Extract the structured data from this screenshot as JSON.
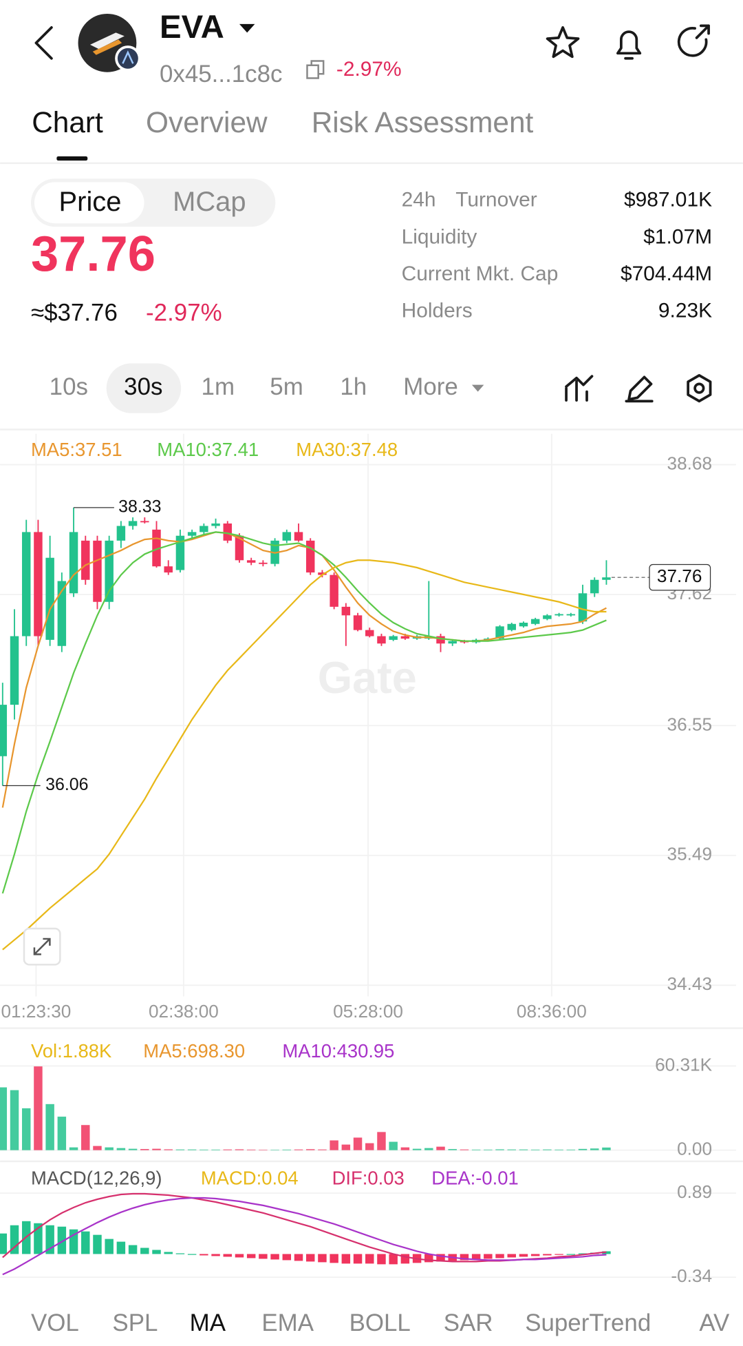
{
  "header": {
    "token": "EVA",
    "address": "0x45...1c8c",
    "change": "-2.97%"
  },
  "tabs": [
    "Chart",
    "Overview",
    "Risk Assessment"
  ],
  "toggle": [
    "Price",
    "MCap"
  ],
  "price": {
    "value": "37.76",
    "usd": "≈$37.76",
    "change": "-2.97%"
  },
  "stats": [
    {
      "prefix": "24h",
      "label": "Turnover",
      "value": "$987.01K"
    },
    {
      "label": "Liquidity",
      "value": "$1.07M"
    },
    {
      "label": "Current Mkt. Cap",
      "value": "$704.44M"
    },
    {
      "label": "Holders",
      "value": "9.23K"
    }
  ],
  "intervals": [
    "10s",
    "30s",
    "1m",
    "5m",
    "1h",
    "More"
  ],
  "indicator_tabs": [
    "VOL",
    "SPL",
    "MA",
    "EMA",
    "BOLL",
    "SAR",
    "SuperTrend",
    "AV"
  ],
  "chart_data": [
    {
      "type": "candlestick",
      "watermark": "Gate",
      "up_color": "#23c28d",
      "down_color": "#f0345d",
      "ylim": [
        34.43,
        38.68
      ],
      "yticks": [
        38.68,
        37.62,
        36.55,
        35.49,
        34.43
      ],
      "x_labels": [
        "01:23:30",
        "02:38:00",
        "05:28:00",
        "08:36:00"
      ],
      "high_label": 38.33,
      "low_label": 36.06,
      "last_price": 37.76,
      "candles": [
        [
          36.3,
          36.9,
          36.06,
          36.72
        ],
        [
          36.72,
          37.5,
          36.6,
          37.28
        ],
        [
          37.28,
          38.23,
          37.2,
          38.13
        ],
        [
          38.13,
          38.23,
          37.2,
          37.28
        ],
        [
          37.25,
          38.1,
          37.2,
          37.92
        ],
        [
          37.2,
          37.8,
          37.15,
          37.73
        ],
        [
          37.63,
          38.33,
          37.6,
          38.13
        ],
        [
          38.06,
          38.1,
          37.7,
          37.74
        ],
        [
          38.06,
          38.1,
          37.5,
          37.56
        ],
        [
          37.56,
          38.1,
          37.5,
          38.06
        ],
        [
          38.06,
          38.22,
          38.0,
          38.18
        ],
        [
          38.18,
          38.25,
          38.15,
          38.22
        ],
        [
          38.22,
          38.25,
          38.2,
          38.21
        ],
        [
          38.15,
          38.22,
          37.84,
          37.85
        ],
        [
          37.85,
          37.9,
          37.78,
          37.8
        ],
        [
          37.82,
          38.15,
          37.8,
          38.1
        ],
        [
          38.1,
          38.15,
          38.08,
          38.13
        ],
        [
          38.13,
          38.2,
          38.1,
          38.18
        ],
        [
          38.18,
          38.24,
          38.16,
          38.2
        ],
        [
          38.2,
          38.22,
          38.04,
          38.06
        ],
        [
          38.1,
          38.12,
          37.88,
          37.9
        ],
        [
          37.9,
          37.92,
          37.86,
          37.88
        ],
        [
          37.88,
          37.9,
          37.85,
          37.87
        ],
        [
          37.87,
          38.08,
          37.85,
          38.06
        ],
        [
          38.06,
          38.15,
          38.04,
          38.13
        ],
        [
          38.13,
          38.2,
          38.05,
          38.06
        ],
        [
          38.06,
          38.08,
          37.78,
          37.8
        ],
        [
          37.8,
          37.82,
          37.76,
          37.78
        ],
        [
          37.78,
          37.8,
          37.5,
          37.52
        ],
        [
          37.52,
          37.55,
          37.2,
          37.45
        ],
        [
          37.45,
          37.47,
          37.32,
          37.33
        ],
        [
          37.33,
          37.35,
          37.27,
          37.28
        ],
        [
          37.28,
          37.3,
          37.2,
          37.22
        ],
        [
          37.25,
          37.29,
          37.24,
          37.28
        ],
        [
          37.28,
          37.3,
          37.25,
          37.26
        ],
        [
          37.26,
          37.29,
          37.25,
          37.28
        ],
        [
          37.26,
          37.73,
          37.25,
          37.28
        ],
        [
          37.28,
          37.3,
          37.15,
          37.22
        ],
        [
          37.22,
          37.25,
          37.2,
          37.24
        ],
        [
          37.24,
          37.25,
          37.22,
          37.23
        ],
        [
          37.23,
          37.26,
          37.22,
          37.25
        ],
        [
          37.25,
          37.27,
          37.24,
          37.26
        ],
        [
          37.26,
          37.37,
          37.25,
          37.36
        ],
        [
          37.33,
          37.39,
          37.32,
          37.38
        ],
        [
          37.36,
          37.4,
          37.35,
          37.39
        ],
        [
          37.38,
          37.43,
          37.37,
          37.42
        ],
        [
          37.42,
          37.46,
          37.41,
          37.45
        ],
        [
          37.45,
          37.47,
          37.44,
          37.46
        ],
        [
          37.45,
          37.47,
          37.44,
          37.46
        ],
        [
          37.4,
          37.7,
          37.38,
          37.63
        ],
        [
          37.63,
          37.76,
          37.6,
          37.74
        ],
        [
          37.74,
          37.9,
          37.7,
          37.76
        ]
      ],
      "series": [
        {
          "name": "MA5:37.51",
          "color": "#e8962e",
          "values": [
            35.88,
            36.4,
            36.86,
            37.2,
            37.5,
            37.65,
            37.78,
            37.86,
            37.9,
            37.94,
            37.98,
            38.03,
            38.07,
            38.08,
            38.06,
            38.05,
            38.07,
            38.1,
            38.13,
            38.12,
            38.08,
            38.03,
            37.98,
            37.96,
            37.98,
            38.02,
            38.0,
            37.94,
            37.82,
            37.68,
            37.55,
            37.45,
            37.38,
            37.32,
            37.29,
            37.27,
            37.27,
            37.26,
            37.25,
            37.24,
            37.24,
            37.25,
            37.27,
            37.29,
            37.31,
            37.34,
            37.36,
            37.37,
            37.38,
            37.4,
            37.46,
            37.51
          ]
        },
        {
          "name": "MA10:37.41",
          "color": "#5cc94a",
          "values": [
            35.18,
            35.5,
            35.85,
            36.15,
            36.42,
            36.7,
            36.98,
            37.22,
            37.45,
            37.65,
            37.78,
            37.88,
            37.95,
            37.99,
            38.02,
            38.05,
            38.08,
            38.11,
            38.13,
            38.12,
            38.1,
            38.07,
            38.04,
            38.02,
            38.03,
            38.04,
            38.0,
            37.94,
            37.86,
            37.76,
            37.65,
            37.55,
            37.46,
            37.39,
            37.34,
            37.3,
            37.28,
            37.26,
            37.25,
            37.24,
            37.24,
            37.24,
            37.25,
            37.26,
            37.27,
            37.28,
            37.29,
            37.3,
            37.31,
            37.33,
            37.37,
            37.41
          ]
        },
        {
          "name": "MA30:37.48",
          "color": "#e8b818",
          "values": [
            34.72,
            34.8,
            34.88,
            34.97,
            35.06,
            35.14,
            35.22,
            35.3,
            35.38,
            35.5,
            35.65,
            35.8,
            35.95,
            36.12,
            36.28,
            36.44,
            36.6,
            36.74,
            36.88,
            37.0,
            37.1,
            37.2,
            37.3,
            37.4,
            37.5,
            37.6,
            37.7,
            37.78,
            37.84,
            37.88,
            37.9,
            37.9,
            37.89,
            37.88,
            37.86,
            37.84,
            37.81,
            37.78,
            37.75,
            37.72,
            37.7,
            37.68,
            37.66,
            37.64,
            37.62,
            37.6,
            37.58,
            37.56,
            37.53,
            37.5,
            37.48,
            37.48
          ]
        }
      ]
    },
    {
      "type": "bar",
      "ylim": [
        0,
        60310
      ],
      "yticks": [
        {
          "value": 60310,
          "label": "60.31K"
        },
        {
          "value": 0,
          "label": "0.00"
        }
      ],
      "legend": [
        {
          "text": "Vol:1.88K",
          "color": "#e8b818"
        },
        {
          "text": "MA5:698.30",
          "color": "#e8962e"
        },
        {
          "text": "MA10:430.95",
          "color": "#a833c9"
        }
      ],
      "values": [
        45000,
        43000,
        30000,
        60000,
        33000,
        24000,
        2000,
        18000,
        3000,
        2000,
        1500,
        1000,
        800,
        1000,
        600,
        500,
        500,
        400,
        400,
        500,
        600,
        400,
        300,
        300,
        400,
        500,
        700,
        500,
        7000,
        4000,
        9000,
        5000,
        13000,
        6000,
        2000,
        1000,
        1500,
        2500,
        800,
        500,
        400,
        400,
        600,
        500,
        500,
        400,
        500,
        400,
        400,
        900,
        1200,
        1880
      ]
    },
    {
      "type": "macd",
      "ylim": [
        -0.34,
        0.89
      ],
      "yticks": [
        0.89,
        -0.34
      ],
      "legend": [
        {
          "text": "MACD(12,26,9)",
          "color": "#555555"
        },
        {
          "text": "MACD:0.04",
          "color": "#e8b818"
        }
      ],
      "up_color": "#23c28d",
      "down_color": "#f0345d",
      "histogram": [
        0.3,
        0.42,
        0.48,
        0.45,
        0.42,
        0.4,
        0.36,
        0.33,
        0.28,
        0.22,
        0.18,
        0.13,
        0.09,
        0.06,
        0.03,
        0.01,
        0,
        -0.02,
        -0.03,
        -0.04,
        -0.05,
        -0.06,
        -0.07,
        -0.08,
        -0.09,
        -0.1,
        -0.11,
        -0.12,
        -0.13,
        -0.14,
        -0.14,
        -0.14,
        -0.15,
        -0.15,
        -0.14,
        -0.13,
        -0.12,
        -0.11,
        -0.1,
        -0.09,
        -0.08,
        -0.07,
        -0.06,
        -0.05,
        -0.04,
        -0.03,
        -0.02,
        -0.01,
        0,
        0.01,
        0.02,
        0.04
      ],
      "series": [
        {
          "name": "DIF:0.03",
          "color": "#d6306d",
          "values": [
            -0.05,
            0.1,
            0.25,
            0.38,
            0.5,
            0.6,
            0.68,
            0.75,
            0.8,
            0.84,
            0.87,
            0.88,
            0.88,
            0.87,
            0.86,
            0.84,
            0.82,
            0.79,
            0.76,
            0.72,
            0.68,
            0.64,
            0.6,
            0.55,
            0.5,
            0.45,
            0.4,
            0.34,
            0.28,
            0.22,
            0.16,
            0.1,
            0.05,
            0.0,
            -0.04,
            -0.07,
            -0.09,
            -0.1,
            -0.11,
            -0.11,
            -0.11,
            -0.1,
            -0.1,
            -0.09,
            -0.08,
            -0.07,
            -0.06,
            -0.04,
            -0.03,
            -0.01,
            0.01,
            0.03
          ]
        },
        {
          "name": "DEA:-0.01",
          "color": "#a833c9",
          "values": [
            -0.3,
            -0.22,
            -0.12,
            -0.02,
            0.08,
            0.18,
            0.28,
            0.37,
            0.46,
            0.54,
            0.61,
            0.67,
            0.72,
            0.76,
            0.79,
            0.81,
            0.82,
            0.82,
            0.81,
            0.79,
            0.77,
            0.74,
            0.71,
            0.67,
            0.63,
            0.59,
            0.54,
            0.49,
            0.44,
            0.38,
            0.32,
            0.26,
            0.2,
            0.14,
            0.09,
            0.04,
            0.0,
            -0.03,
            -0.05,
            -0.07,
            -0.08,
            -0.09,
            -0.09,
            -0.09,
            -0.08,
            -0.08,
            -0.07,
            -0.06,
            -0.05,
            -0.04,
            -0.02,
            -0.01
          ]
        }
      ]
    }
  ]
}
